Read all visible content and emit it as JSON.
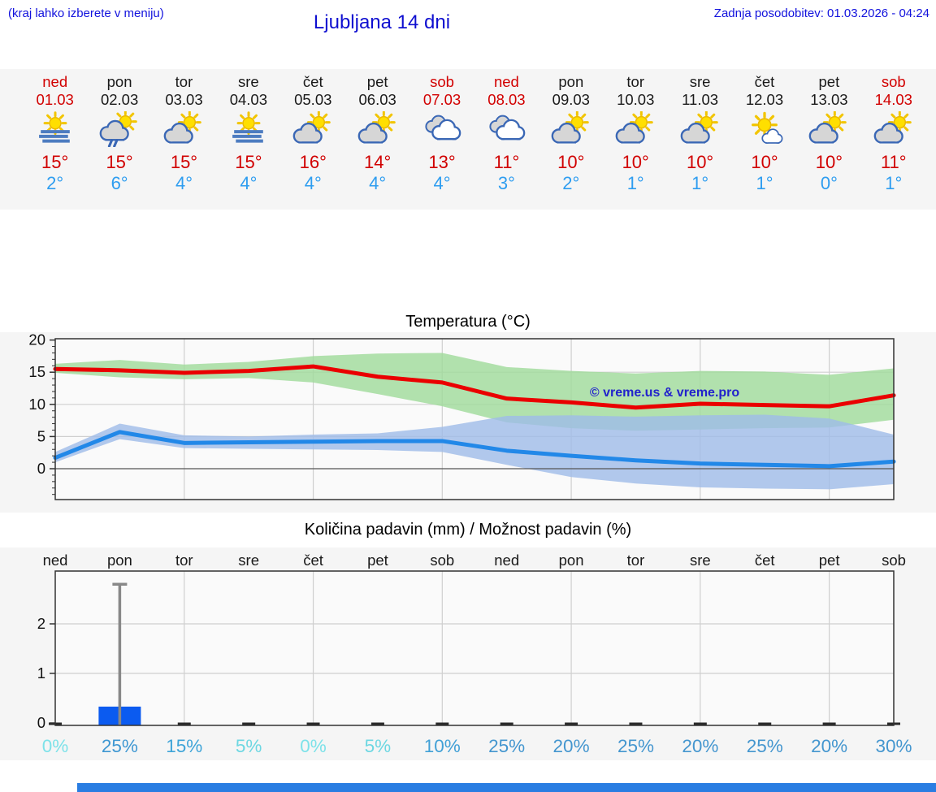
{
  "header": {
    "note": "(kraj lahko izberete v meniju)",
    "title": "Ljubljana 14 dni",
    "updated": "Zadnja posodobitev: 01.03.2026 - 04:24",
    "text_color": "#1212dd"
  },
  "forecast": {
    "weekday_color": "#1a1a1a",
    "weekend_color": "#d20000",
    "high_color": "#d10000",
    "low_color": "#2e9df0",
    "days": [
      {
        "name": "ned",
        "date": "01.03",
        "icon": "sun-fog",
        "high": "15°",
        "low": "2°",
        "weekend": true
      },
      {
        "name": "pon",
        "date": "02.03",
        "icon": "partly-cloudy-rain",
        "high": "15°",
        "low": "6°",
        "weekend": false
      },
      {
        "name": "tor",
        "date": "03.03",
        "icon": "partly-cloudy",
        "high": "15°",
        "low": "4°",
        "weekend": false
      },
      {
        "name": "sre",
        "date": "04.03",
        "icon": "sun-fog",
        "high": "15°",
        "low": "4°",
        "weekend": false
      },
      {
        "name": "čet",
        "date": "05.03",
        "icon": "partly-cloudy",
        "high": "16°",
        "low": "4°",
        "weekend": false
      },
      {
        "name": "pet",
        "date": "06.03",
        "icon": "partly-cloudy",
        "high": "14°",
        "low": "4°",
        "weekend": false
      },
      {
        "name": "sob",
        "date": "07.03",
        "icon": "cloudy",
        "high": "13°",
        "low": "4°",
        "weekend": true
      },
      {
        "name": "ned",
        "date": "08.03",
        "icon": "cloudy",
        "high": "11°",
        "low": "3°",
        "weekend": true
      },
      {
        "name": "pon",
        "date": "09.03",
        "icon": "partly-cloudy",
        "high": "10°",
        "low": "2°",
        "weekend": false
      },
      {
        "name": "tor",
        "date": "10.03",
        "icon": "partly-cloudy",
        "high": "10°",
        "low": "1°",
        "weekend": false
      },
      {
        "name": "sre",
        "date": "11.03",
        "icon": "partly-cloudy",
        "high": "10°",
        "low": "1°",
        "weekend": false
      },
      {
        "name": "čet",
        "date": "12.03",
        "icon": "mostly-sunny",
        "high": "10°",
        "low": "1°",
        "weekend": false
      },
      {
        "name": "pet",
        "date": "13.03",
        "icon": "partly-cloudy",
        "high": "10°",
        "low": "0°",
        "weekend": false
      },
      {
        "name": "sob",
        "date": "14.03",
        "icon": "partly-cloudy",
        "high": "11°",
        "low": "1°",
        "weekend": true
      }
    ]
  },
  "chart_data": [
    {
      "type": "line",
      "title": "Temperatura (°C)",
      "watermark": "© vreme.us & vreme.pro",
      "watermark_color": "#2222cc",
      "categories": [
        "01.03",
        "02.03",
        "03.03",
        "04.03",
        "05.03",
        "06.03",
        "07.03",
        "08.03",
        "09.03",
        "10.03",
        "11.03",
        "12.03",
        "13.03",
        "14.03"
      ],
      "ylim": [
        -4.8,
        20
      ],
      "yticks": [
        0,
        5,
        10,
        15,
        20
      ],
      "grid": true,
      "series": [
        {
          "name": "max temperature",
          "color": "#ea0000",
          "values": [
            15.5,
            15.3,
            14.9,
            15.2,
            15.9,
            14.3,
            13.4,
            10.9,
            10.3,
            9.5,
            10.1,
            9.9,
            9.7,
            11.4
          ]
        },
        {
          "name": "min temperature",
          "color": "#2288e8",
          "values": [
            1.7,
            5.7,
            4.0,
            4.1,
            4.2,
            4.3,
            4.3,
            2.8,
            2.0,
            1.3,
            0.8,
            0.6,
            0.4,
            1.1
          ]
        }
      ],
      "bands": [
        {
          "name": "max range",
          "color": "#9fdb9a",
          "upper": [
            16.3,
            16.9,
            16.2,
            16.6,
            17.5,
            17.9,
            18.0,
            15.8,
            15.2,
            14.8,
            15.2,
            15.1,
            14.6,
            15.6
          ],
          "lower": [
            14.9,
            14.2,
            13.9,
            14.1,
            13.4,
            11.6,
            9.7,
            7.2,
            6.3,
            5.9,
            6.1,
            6.3,
            6.4,
            7.6
          ]
        },
        {
          "name": "min range",
          "color": "#9fbce8",
          "upper": [
            2.6,
            7.0,
            5.2,
            5.0,
            5.3,
            5.5,
            6.5,
            8.2,
            8.3,
            8.1,
            8.3,
            8.4,
            7.8,
            5.3
          ],
          "lower": [
            1.0,
            4.6,
            3.2,
            3.1,
            3.0,
            2.9,
            2.6,
            0.6,
            -1.3,
            -2.3,
            -2.9,
            -3.1,
            -3.2,
            -2.4
          ]
        }
      ]
    },
    {
      "type": "bar",
      "title": "Količina padavin (mm) / Možnost padavin (%)",
      "categories": [
        "ned",
        "pon",
        "tor",
        "sre",
        "čet",
        "pet",
        "sob",
        "ned",
        "pon",
        "tor",
        "sre",
        "čet",
        "pet",
        "sob"
      ],
      "values": [
        0,
        0.33,
        0,
        0,
        0,
        0,
        0,
        0,
        0,
        0,
        0,
        0,
        0,
        0
      ],
      "bar_color": "#0b5bf0",
      "whisker": {
        "day_index": 1,
        "max": 2.8,
        "color": "#888888"
      },
      "ylim": [
        0,
        3.1
      ],
      "yticks": [
        0,
        1,
        2
      ],
      "grid": true,
      "percent": [
        {
          "label": "0%",
          "color": "#7de2e9"
        },
        {
          "label": "25%",
          "color": "#3e97d2"
        },
        {
          "label": "15%",
          "color": "#3ea4d8"
        },
        {
          "label": "5%",
          "color": "#6dd7e2"
        },
        {
          "label": "0%",
          "color": "#7de2e9"
        },
        {
          "label": "5%",
          "color": "#6dd7e2"
        },
        {
          "label": "10%",
          "color": "#41a0d6"
        },
        {
          "label": "25%",
          "color": "#4496cf"
        },
        {
          "label": "20%",
          "color": "#4496cf"
        },
        {
          "label": "25%",
          "color": "#4496cf"
        },
        {
          "label": "20%",
          "color": "#4496cf"
        },
        {
          "label": "25%",
          "color": "#4496cf"
        },
        {
          "label": "20%",
          "color": "#4496cf"
        },
        {
          "label": "30%",
          "color": "#4496cf"
        }
      ]
    }
  ],
  "footer": {
    "bar_color": "#2a7de2"
  }
}
